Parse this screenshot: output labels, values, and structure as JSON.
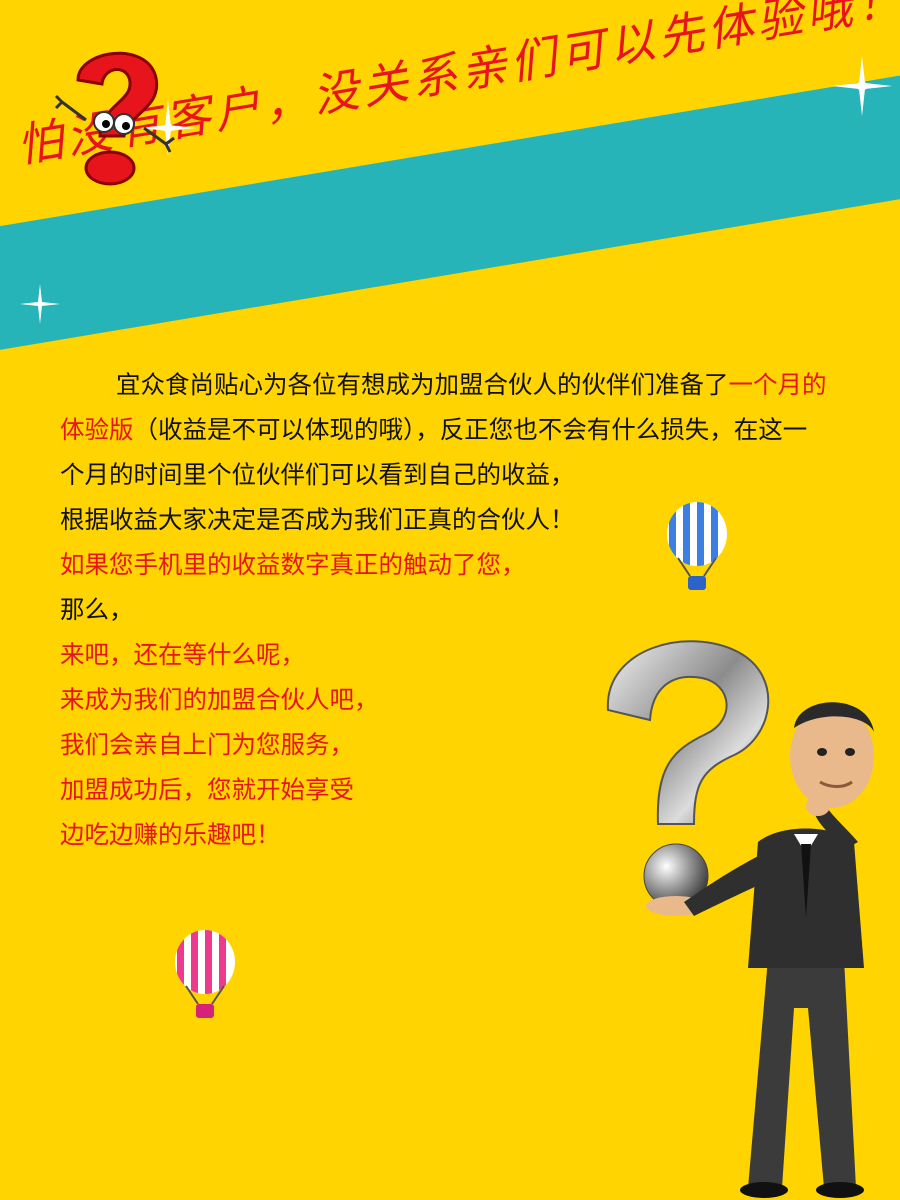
{
  "banner": {
    "text": "怕没有客户，没关系亲们可以先体验哦！"
  },
  "content": {
    "p1_start": "宜众食尚贴心为各位有想成为加盟合伙人的伙伴们准备了",
    "p1_red": "一个月的体验版",
    "p1_end": "（收益是不可以体现的哦），反正您也不会有什么损失，在这一个月的时间里个位伙伴们可以看到自己的收益，",
    "p2": "根据收益大家决定是否成为我们正真的合伙人！",
    "p3": "如果您手机里的收益数字真正的触动了您，",
    "p4": "那么，",
    "p5": "来吧，还在等什么呢，",
    "p6": "来成为我们的加盟合伙人吧，",
    "p7": "我们会亲自上门为您服务，",
    "p8": "加盟成功后，您就开始享受",
    "p9": "边吃边赚的乐趣吧！"
  },
  "colors": {
    "background": "#FFD400",
    "banner": "#26B4B8",
    "accent_red": "#E8141C",
    "text": "#111111"
  },
  "icons": [
    "question-mark-character-icon",
    "sparkle-icon",
    "hot-air-balloon-blue-icon",
    "hot-air-balloon-pink-icon",
    "thinking-businessman-icon"
  ]
}
